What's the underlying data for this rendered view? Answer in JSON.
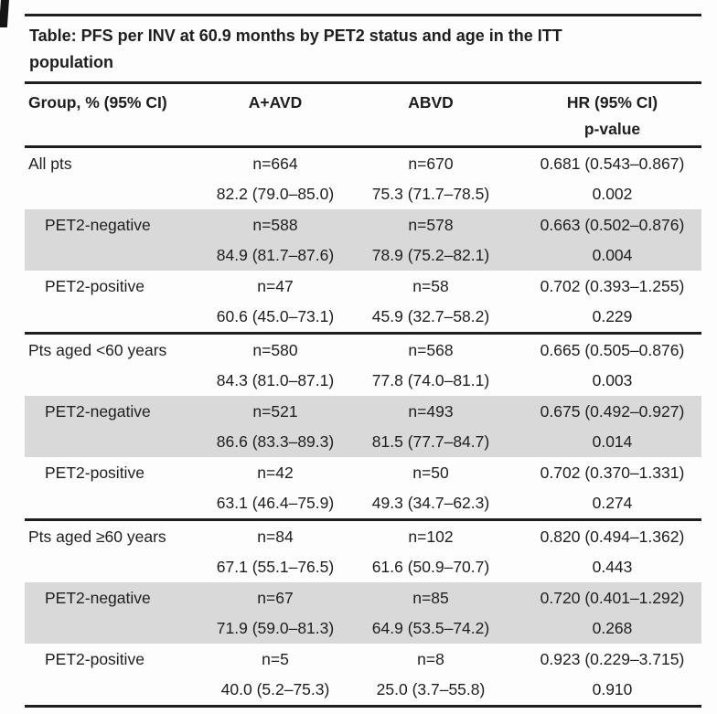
{
  "title_lines": [
    "Table: PFS per INV at 60.9 months by PET2 status and age in the ITT",
    "population"
  ],
  "columns": {
    "group": "Group, % (95% CI)",
    "aavd": "A+AVD",
    "abvd": "ABVD",
    "hr_line1": "HR (95% CI)",
    "hr_line2": "p-value"
  },
  "rows": [
    {
      "group": "All pts",
      "indent": false,
      "shaded": false,
      "section_start": true,
      "aavd_n": "n=664",
      "aavd_pct": "82.2 (79.0–85.0)",
      "abvd_n": "n=670",
      "abvd_pct": "75.3 (71.7–78.5)",
      "hr": "0.681 (0.543–0.867)",
      "p_value": "0.002"
    },
    {
      "group": "PET2-negative",
      "indent": true,
      "shaded": true,
      "section_start": false,
      "aavd_n": "n=588",
      "aavd_pct": "84.9 (81.7–87.6)",
      "abvd_n": "n=578",
      "abvd_pct": "78.9 (75.2–82.1)",
      "hr": "0.663 (0.502–0.876)",
      "p_value": "0.004"
    },
    {
      "group": "PET2-positive",
      "indent": true,
      "shaded": false,
      "section_start": false,
      "aavd_n": "n=47",
      "aavd_pct": "60.6 (45.0–73.1)",
      "abvd_n": "n=58",
      "abvd_pct": "45.9 (32.7–58.2)",
      "hr": "0.702 (0.393–1.255)",
      "p_value": "0.229"
    },
    {
      "group": "Pts aged <60 years",
      "indent": false,
      "shaded": false,
      "section_start": true,
      "aavd_n": "n=580",
      "aavd_pct": "84.3 (81.0–87.1)",
      "abvd_n": "n=568",
      "abvd_pct": "77.8 (74.0–81.1)",
      "hr": "0.665 (0.505–0.876)",
      "p_value": "0.003"
    },
    {
      "group": "PET2-negative",
      "indent": true,
      "shaded": true,
      "section_start": false,
      "aavd_n": "n=521",
      "aavd_pct": "86.6 (83.3–89.3)",
      "abvd_n": "n=493",
      "abvd_pct": "81.5 (77.7–84.7)",
      "hr": "0.675 (0.492–0.927)",
      "p_value": "0.014"
    },
    {
      "group": "PET2-positive",
      "indent": true,
      "shaded": false,
      "section_start": false,
      "aavd_n": "n=42",
      "aavd_pct": "63.1 (46.4–75.9)",
      "abvd_n": "n=50",
      "abvd_pct": "49.3 (34.7–62.3)",
      "hr": "0.702 (0.370–1.331)",
      "p_value": "0.274"
    },
    {
      "group": "Pts aged ≥60 years",
      "indent": false,
      "shaded": false,
      "section_start": true,
      "aavd_n": "n=84",
      "aavd_pct": "67.1 (55.1–76.5)",
      "abvd_n": "n=102",
      "abvd_pct": "61.6 (50.9–70.7)",
      "hr": "0.820 (0.494–1.362)",
      "p_value": "0.443"
    },
    {
      "group": "PET2-negative",
      "indent": true,
      "shaded": true,
      "section_start": false,
      "aavd_n": "n=67",
      "aavd_pct": "71.9 (59.0–81.3)",
      "abvd_n": "n=85",
      "abvd_pct": "64.9 (53.5–74.2)",
      "hr": "0.720 (0.401–1.292)",
      "p_value": "0.268"
    },
    {
      "group": "PET2-positive",
      "indent": true,
      "shaded": false,
      "section_start": false,
      "aavd_n": "n=5",
      "aavd_pct": "40.0 (5.2–75.3)",
      "abvd_n": "n=8",
      "abvd_pct": "25.0 (3.7–55.8)",
      "hr": "0.923 (0.229–3.715)",
      "p_value": "0.910"
    }
  ],
  "colors": {
    "shaded_row": "#d9d9d9",
    "rule": "#1f1f1f",
    "text": "#1e1e1e"
  }
}
